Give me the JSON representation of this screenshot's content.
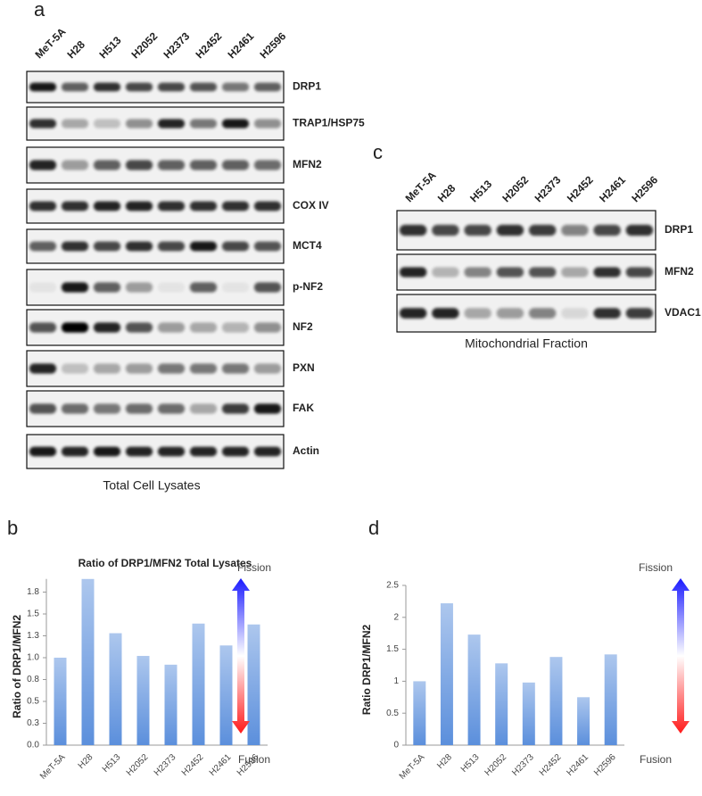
{
  "blots": [
    {
      "label": "a",
      "lanes": [
        "MeT-5A",
        "H28",
        "H513",
        "H2052",
        "H2373",
        "H2452",
        "H2461",
        "H2596"
      ],
      "rows": [
        "DRP1",
        "TRAP1/HSP75",
        "MFN2",
        "COX IV",
        "MCT4",
        "p-NF2",
        "NF2",
        "PXN",
        "FAK",
        "Actin"
      ],
      "caption": "Total Cell Lysates"
    },
    {
      "label": "c",
      "lanes": [
        "MeT-5A",
        "H28",
        "H513",
        "H2052",
        "H2373",
        "H2452",
        "H2461",
        "H2596"
      ],
      "rows": [
        "DRP1",
        "MFN2",
        "VDAC1"
      ],
      "caption": "Mitochondrial Fraction"
    }
  ],
  "chart_data": [
    {
      "type": "bar",
      "panel_label": "b",
      "title": "Ratio of DRP1/MFN2 Total Lysates",
      "y_label": "Ratio of DRP1/MFN2",
      "categories": [
        "MeT-5A",
        "H28",
        "H513",
        "H2052",
        "H2373",
        "H2452",
        "H2461",
        "H2596"
      ],
      "values": [
        1.0,
        1.9,
        1.28,
        1.02,
        0.92,
        1.39,
        1.14,
        1.38
      ],
      "color": "#5b8fdc",
      "ylim": [
        0,
        1.9
      ],
      "yticks": [
        {
          "value": 0,
          "label": "0.0"
        },
        {
          "value": 0.25,
          "label": "0.3"
        },
        {
          "value": 0.5,
          "label": "0.5"
        },
        {
          "value": 0.75,
          "label": "0.8"
        },
        {
          "value": 1.0,
          "label": "1.0"
        },
        {
          "value": 1.25,
          "label": "1.3"
        },
        {
          "value": 1.5,
          "label": "1.5"
        },
        {
          "value": 1.75,
          "label": "1.8"
        }
      ],
      "annotations": [
        "Fission",
        "Fusion"
      ]
    },
    {
      "type": "bar",
      "panel_label": "d",
      "y_label": "Ratio DRP1/MFN2",
      "categories": [
        "MeT-5A",
        "H28",
        "H513",
        "H2052",
        "H2373",
        "H2452",
        "H2461",
        "H2596"
      ],
      "values": [
        1.0,
        2.22,
        1.73,
        1.28,
        0.98,
        1.38,
        0.75,
        1.42
      ],
      "color": "#5b8fdc",
      "ylim": [
        0,
        2.5
      ],
      "yticks": [
        0,
        0.5,
        1,
        1.5,
        2,
        2.5
      ],
      "annotations": [
        "Fission",
        "Fusion"
      ]
    }
  ]
}
